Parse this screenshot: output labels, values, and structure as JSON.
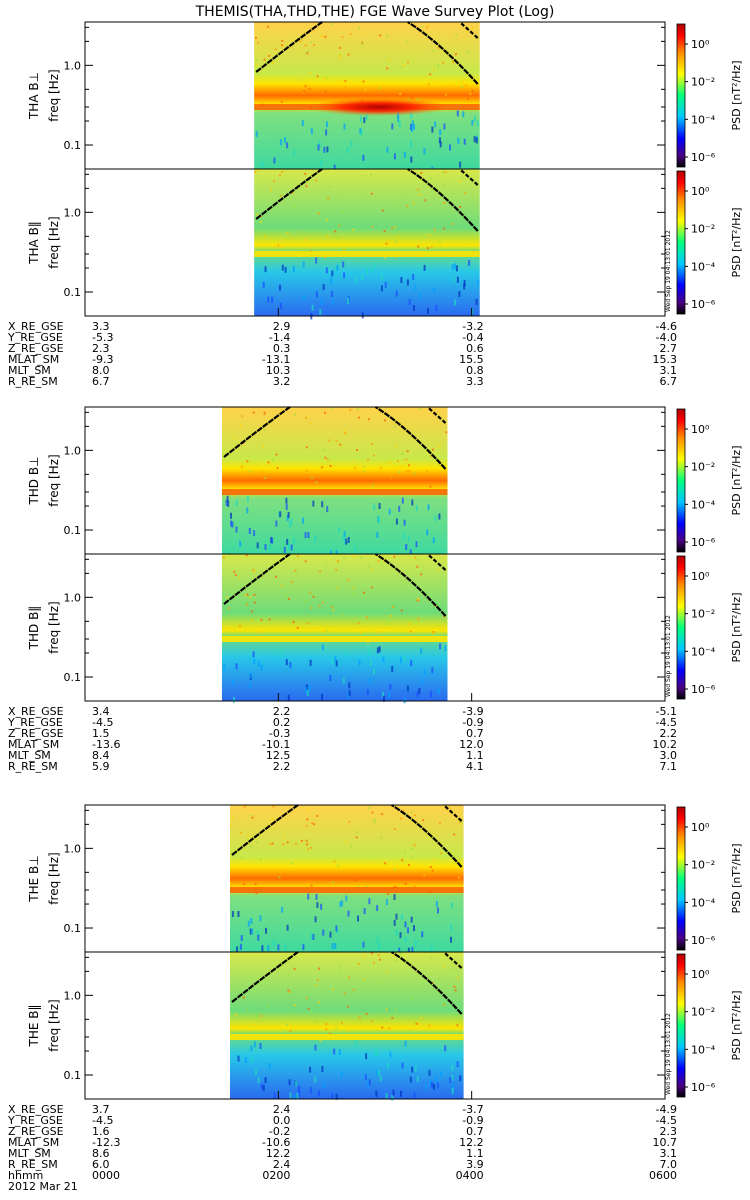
{
  "title": "THEMIS(THA,THD,THE) FGE Wave Survey Plot (Log)",
  "colors": {
    "background": "#ffffff",
    "frame": "#000000",
    "colorbar_stops": [
      "#000000",
      "#4b0082",
      "#0000ff",
      "#00c8ff",
      "#00ff7f",
      "#ffff00",
      "#ff8c00",
      "#ff0000",
      "#b00000"
    ]
  },
  "freq_axis": {
    "ticks": [
      "1.0",
      "0.1"
    ],
    "unit_label": "freq [Hz]",
    "scale": "log",
    "range_hz": [
      0.05,
      3.5
    ]
  },
  "colorbar": {
    "label": "PSD [nT²/Hz]",
    "ticks": [
      "10⁰",
      "10⁻²",
      "10⁻⁴",
      "10⁻⁶"
    ]
  },
  "stamp_text": "Wed Sep 19 04:13:01 2012",
  "chart_data": {
    "type": "heatmap",
    "title": "THEMIS(THA,THD,THE) FGE Wave Survey Plot (Log)",
    "x_axis": {
      "label": "hhmm",
      "ticks": [
        "0000",
        "0200",
        "0400",
        "0600"
      ],
      "date": "2012 Mar 21"
    },
    "y_axis": {
      "label": "freq [Hz]",
      "scale": "log",
      "ticks": [
        1.0,
        0.1
      ]
    },
    "colorbar": {
      "label": "PSD [nT²/Hz]",
      "scale": "log",
      "ticks": [
        "10⁰",
        "10⁻²",
        "10⁻⁴",
        "10⁻⁶"
      ]
    },
    "probes": [
      {
        "name": "THA",
        "panels": [
          "THA B⊥",
          "THA B‖"
        ],
        "data_coverage_hhmm": [
          "0145",
          "0405"
        ],
        "peak_band_hz": 0.3,
        "ephemeris": [
          {
            "label": "X_RE_GSE",
            "values": [
              "3.3",
              "2.9",
              "-3.2",
              "-4.6"
            ]
          },
          {
            "label": "Y_RE_GSE",
            "values": [
              "-5.3",
              "-1.4",
              "-0.4",
              "-4.0"
            ]
          },
          {
            "label": "Z_RE_GSE",
            "values": [
              "2.3",
              "0.3",
              "0.6",
              "2.7"
            ]
          },
          {
            "label": "MLAT_SM",
            "values": [
              "-9.3",
              "-13.1",
              "15.5",
              "15.3"
            ]
          },
          {
            "label": "MLT_SM",
            "values": [
              "8.0",
              "10.3",
              "0.8",
              "3.1"
            ]
          },
          {
            "label": "R_RE_SM",
            "values": [
              "6.7",
              "3.2",
              "3.3",
              "6.7"
            ]
          }
        ]
      },
      {
        "name": "THD",
        "panels": [
          "THD B⊥",
          "THD B‖"
        ],
        "data_coverage_hhmm": [
          "0125",
          "0345"
        ],
        "peak_band_hz": 0.3,
        "ephemeris": [
          {
            "label": "X_RE_GSE",
            "values": [
              "3.4",
              "2.2",
              "-3.9",
              "-5.1"
            ]
          },
          {
            "label": "Y_RE_GSE",
            "values": [
              "-4.5",
              "0.2",
              "-0.9",
              "-4.5"
            ]
          },
          {
            "label": "Z_RE_GSE",
            "values": [
              "1.5",
              "-0.3",
              "0.7",
              "2.2"
            ]
          },
          {
            "label": "MLAT_SM",
            "values": [
              "-13.6",
              "-10.1",
              "12.0",
              "10.2"
            ]
          },
          {
            "label": "MLT_SM",
            "values": [
              "8.4",
              "12.5",
              "1.1",
              "3.0"
            ]
          },
          {
            "label": "R_RE_SM",
            "values": [
              "5.9",
              "2.2",
              "4.1",
              "7.1"
            ]
          }
        ]
      },
      {
        "name": "THE",
        "panels": [
          "THE B⊥",
          "THE B‖"
        ],
        "data_coverage_hhmm": [
          "0130",
          "0355"
        ],
        "peak_band_hz": 0.3,
        "ephemeris": [
          {
            "label": "X_RE_GSE",
            "values": [
              "3.7",
              "2.4",
              "-3.7",
              "-4.9"
            ]
          },
          {
            "label": "Y_RE_GSE",
            "values": [
              "-4.5",
              "0.0",
              "-0.9",
              "-4.5"
            ]
          },
          {
            "label": "Z_RE_GSE",
            "values": [
              "1.6",
              "-0.2",
              "0.7",
              "2.3"
            ]
          },
          {
            "label": "MLAT_SM",
            "values": [
              "-12.3",
              "-10.6",
              "12.2",
              "10.7"
            ]
          },
          {
            "label": "MLT_SM",
            "values": [
              "8.6",
              "12.2",
              "1.1",
              "3.1"
            ]
          },
          {
            "label": "R_RE_SM",
            "values": [
              "6.0",
              "2.4",
              "3.9",
              "7.0"
            ]
          }
        ],
        "time_row": {
          "label": "hhmm",
          "values": [
            "0000",
            "0200",
            "0400",
            "0600"
          ]
        },
        "date_label": "2012 Mar 21"
      }
    ]
  }
}
